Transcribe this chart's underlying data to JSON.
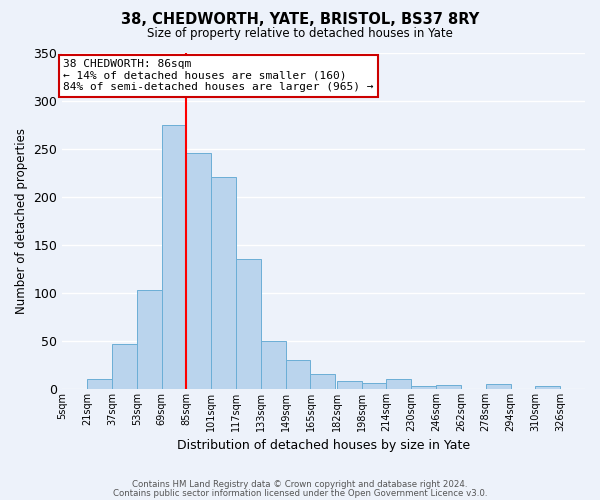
{
  "title": "38, CHEDWORTH, YATE, BRISTOL, BS37 8RY",
  "subtitle": "Size of property relative to detached houses in Yate",
  "xlabel": "Distribution of detached houses by size in Yate",
  "ylabel": "Number of detached properties",
  "bin_labels": [
    "5sqm",
    "21sqm",
    "37sqm",
    "53sqm",
    "69sqm",
    "85sqm",
    "101sqm",
    "117sqm",
    "133sqm",
    "149sqm",
    "165sqm",
    "182sqm",
    "198sqm",
    "214sqm",
    "230sqm",
    "246sqm",
    "262sqm",
    "278sqm",
    "294sqm",
    "310sqm",
    "326sqm"
  ],
  "bar_heights": [
    0,
    10,
    47,
    103,
    275,
    245,
    220,
    135,
    50,
    30,
    16,
    8,
    6,
    10,
    3,
    4,
    0,
    5,
    0,
    3
  ],
  "bar_color": "#bad4ed",
  "bar_edge_color": "#6baed6",
  "ylim": [
    0,
    350
  ],
  "yticks": [
    0,
    50,
    100,
    150,
    200,
    250,
    300,
    350
  ],
  "red_line_x": 85,
  "annotation_title": "38 CHEDWORTH: 86sqm",
  "annotation_line1": "← 14% of detached houses are smaller (160)",
  "annotation_line2": "84% of semi-detached houses are larger (965) →",
  "footnote1": "Contains HM Land Registry data © Crown copyright and database right 2024.",
  "footnote2": "Contains public sector information licensed under the Open Government Licence v3.0.",
  "background_color": "#edf2fa",
  "plot_bg_color": "#edf2fa",
  "grid_color": "#ffffff",
  "annotation_box_color": "#ffffff",
  "annotation_border_color": "#cc0000",
  "bin_starts": [
    5,
    21,
    37,
    53,
    69,
    85,
    101,
    117,
    133,
    149,
    165,
    182,
    198,
    214,
    230,
    246,
    262,
    278,
    294,
    310
  ],
  "bin_width": 16
}
